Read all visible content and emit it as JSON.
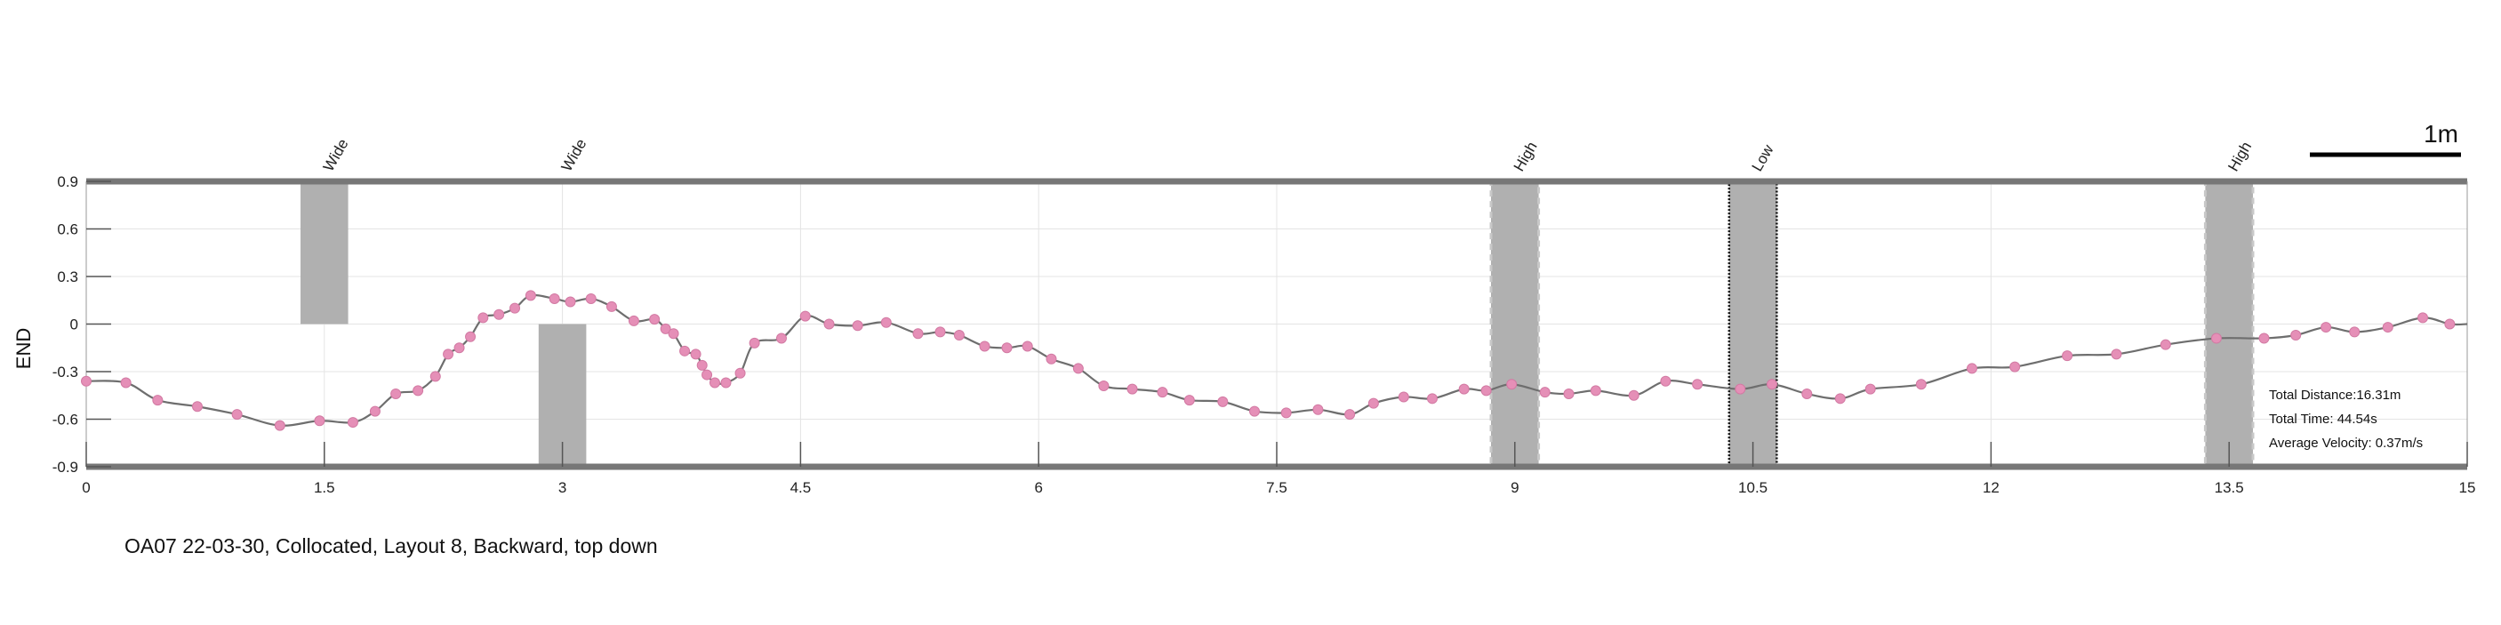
{
  "chart_data": {
    "type": "line",
    "ylabel": "END",
    "xlim": [
      0,
      15
    ],
    "ylim": [
      -0.9,
      0.9
    ],
    "xticks": [
      "0",
      "1.5",
      "3",
      "4.5",
      "6",
      "7.5",
      "9",
      "10.5",
      "12",
      "13.5",
      "15"
    ],
    "yticks": [
      "0.9",
      "0.6",
      "0.3",
      "0",
      "-0.3",
      "-0.6",
      "-0.9"
    ],
    "grid": true,
    "series": [
      {
        "color": "#e58fb7",
        "line_color": "#6e6e6e",
        "x": [
          0,
          0.25,
          0.45,
          0.7,
          0.95,
          1.22,
          1.47,
          1.68,
          1.82,
          1.95,
          2.09,
          2.2,
          2.28,
          2.35,
          2.42,
          2.5,
          2.6,
          2.7,
          2.8,
          2.95,
          3.05,
          3.18,
          3.31,
          3.45,
          3.58,
          3.65,
          3.7,
          3.77,
          3.84,
          3.88,
          3.91,
          3.96,
          4.03,
          4.12,
          4.21,
          4.38,
          4.53,
          4.68,
          4.86,
          5.04,
          5.24,
          5.38,
          5.5,
          5.66,
          5.8,
          5.93,
          6.08,
          6.25,
          6.41,
          6.59,
          6.78,
          6.95,
          7.16,
          7.36,
          7.56,
          7.76,
          7.96,
          8.11,
          8.3,
          8.48,
          8.68,
          8.82,
          8.98,
          9.19,
          9.34,
          9.51,
          9.75,
          9.95,
          10.15,
          10.42,
          10.62,
          10.84,
          11.05,
          11.24,
          11.56,
          11.88,
          12.15,
          12.48,
          12.79,
          13.1,
          13.42,
          13.72,
          13.92,
          14.11,
          14.29,
          14.5,
          14.72,
          14.89
        ],
        "y": [
          -0.36,
          -0.37,
          -0.48,
          -0.52,
          -0.57,
          -0.64,
          -0.61,
          -0.62,
          -0.55,
          -0.44,
          -0.42,
          -0.33,
          -0.19,
          -0.15,
          -0.08,
          0.04,
          0.06,
          0.1,
          0.18,
          0.16,
          0.14,
          0.16,
          0.11,
          0.02,
          0.03,
          -0.03,
          -0.06,
          -0.17,
          -0.19,
          -0.26,
          -0.32,
          -0.37,
          -0.37,
          -0.31,
          -0.12,
          -0.09,
          0.05,
          0.0,
          -0.01,
          0.01,
          -0.06,
          -0.05,
          -0.07,
          -0.14,
          -0.15,
          -0.14,
          -0.22,
          -0.28,
          -0.39,
          -0.41,
          -0.43,
          -0.48,
          -0.49,
          -0.55,
          -0.56,
          -0.54,
          -0.57,
          -0.5,
          -0.46,
          -0.47,
          -0.41,
          -0.42,
          -0.38,
          -0.43,
          -0.44,
          -0.42,
          -0.45,
          -0.36,
          -0.38,
          -0.41,
          -0.38,
          -0.44,
          -0.47,
          -0.41,
          -0.38,
          -0.28,
          -0.27,
          -0.2,
          -0.19,
          -0.13,
          -0.09,
          -0.09,
          -0.07,
          -0.02,
          -0.05,
          -0.02,
          0.04,
          0.0
        ]
      }
    ],
    "obstacles": [
      {
        "label": "Wide",
        "x0": 1.35,
        "x1": 1.65,
        "y0": 0.0,
        "y1": 0.9,
        "style": "plain"
      },
      {
        "label": "Wide",
        "x0": 2.85,
        "x1": 3.15,
        "y0": -0.9,
        "y1": 0.0,
        "style": "plain"
      },
      {
        "label": "High",
        "x0": 8.85,
        "x1": 9.15,
        "y0": -0.9,
        "y1": 0.9,
        "style": "dashed"
      },
      {
        "label": "Low",
        "x0": 10.35,
        "x1": 10.65,
        "y0": -0.9,
        "y1": 0.9,
        "style": "dotted"
      },
      {
        "label": "High",
        "x0": 13.35,
        "x1": 13.65,
        "y0": -0.9,
        "y1": 0.9,
        "style": "dashed"
      }
    ],
    "stats": [
      "Total Distance:16.31m",
      "Total Time: 44.54s",
      "Average Velocity: 0.37m/s"
    ],
    "scale_bar_label": "1m",
    "caption": "OA07 22-03-30, Collocated, Layout 8, Backward, top down"
  }
}
